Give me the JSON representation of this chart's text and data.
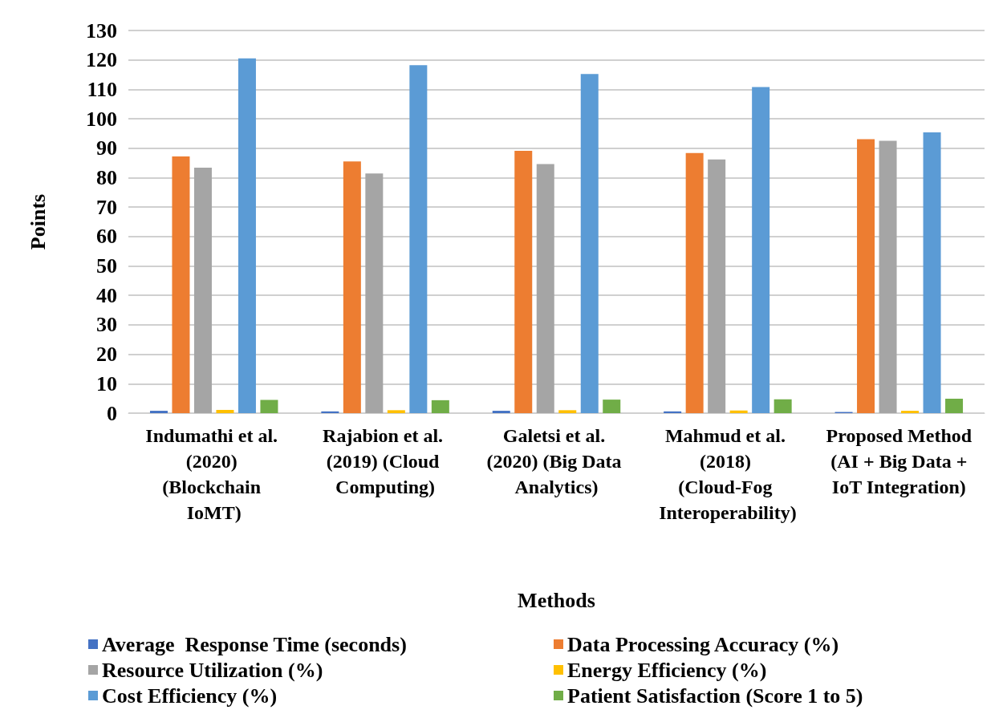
{
  "chart_data": {
    "type": "bar",
    "xlabel": "Methods",
    "ylabel": "Points",
    "categories": [
      "Indumathi et al. (2020) (Blockchain IoMT)",
      "Rajabion et al. (2019) (Cloud Computing)",
      "Galetsi et al. (2020) (Big Data Analytics)",
      "Mahmud et al. (2018) (Cloud-Fog Interoperability)",
      "Proposed Method (AI + Big Data + IoT Integration)"
    ],
    "series": [
      {
        "name": "Average  Response Time (seconds)",
        "color": "#4472c4",
        "values": [
          0.8,
          0.6,
          0.8,
          0.6,
          0.4
        ]
      },
      {
        "name": "Data Processing Accuracy (%)",
        "color": "#ed7d31",
        "values": [
          87.2,
          85.5,
          89.1,
          88.4,
          93.1
        ]
      },
      {
        "name": "Resource Utilization (%)",
        "color": "#a5a5a5",
        "values": [
          83.4,
          81.4,
          84.6,
          86.2,
          92.5
        ]
      },
      {
        "name": "Energy Efficiency (%)",
        "color": "#ffc000",
        "values": [
          1.1,
          1.0,
          1.0,
          0.9,
          0.8
        ]
      },
      {
        "name": "Cost Efficiency (%)",
        "color": "#5b9bd5",
        "values": [
          120.5,
          118.2,
          115.2,
          110.8,
          95.4
        ]
      },
      {
        "name": "Patient Satisfaction (Score 1 to 5)",
        "color": "#70ad47",
        "values": [
          4.5,
          4.4,
          4.6,
          4.7,
          4.9
        ]
      }
    ],
    "ylim": [
      0,
      130
    ],
    "yticks": [
      0,
      10,
      20,
      30,
      40,
      50,
      60,
      70,
      80,
      90,
      100,
      110,
      120,
      130
    ],
    "grid": "y",
    "legend": "bottom"
  }
}
